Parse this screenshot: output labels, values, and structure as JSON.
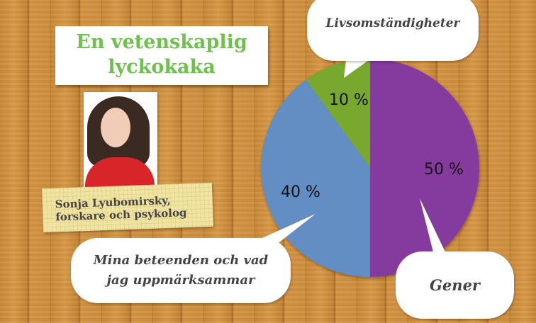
{
  "title_lines": [
    "En vetenskaplig",
    "lyckokaka"
  ],
  "caption_lines": [
    "Sonja Lyubomirsky,",
    "forskare och psykolog"
  ],
  "chart_data": {
    "type": "pie",
    "slices": [
      {
        "label": "Gener",
        "value": 50,
        "value_label": "50 %",
        "color": "#853a9e"
      },
      {
        "label": "Mina beteenden och vad jag uppmärksammar",
        "value": 40,
        "value_label": "40 %",
        "color": "#628ec4"
      },
      {
        "label": "Livsomständigheter",
        "value": 10,
        "value_label": "10 %",
        "color": "#78a82e"
      }
    ]
  },
  "bubbles": {
    "top": "Livsomständigheter",
    "left_lines": [
      "Mina beteenden och vad",
      "jag uppmärksammar"
    ],
    "right": "Gener"
  }
}
